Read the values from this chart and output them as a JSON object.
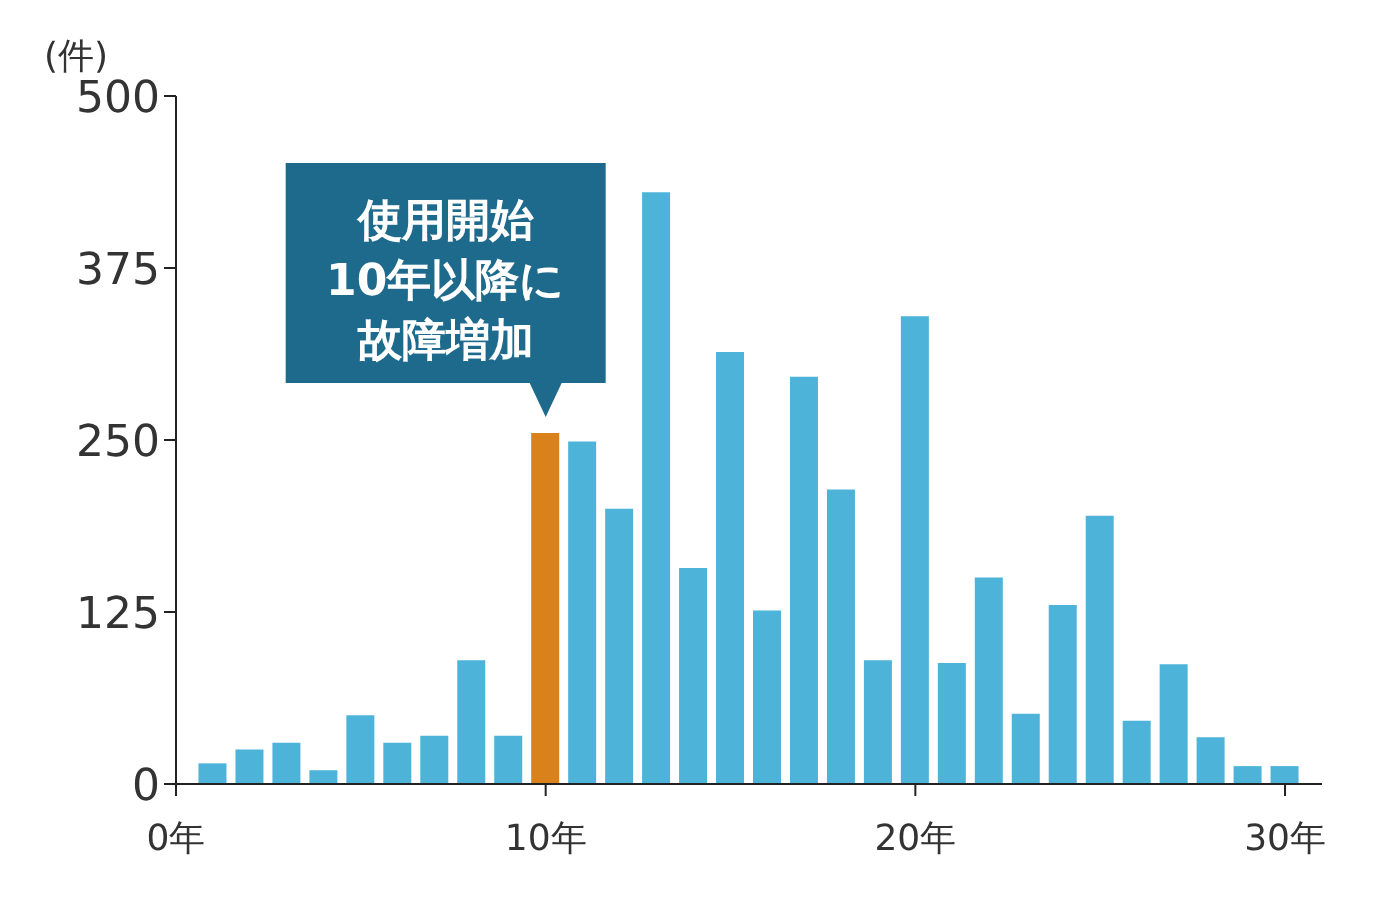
{
  "chart_data": {
    "type": "bar",
    "ylabel": "(件)",
    "x": [
      1,
      2,
      3,
      4,
      5,
      6,
      7,
      8,
      9,
      10,
      11,
      12,
      13,
      14,
      15,
      16,
      17,
      18,
      19,
      20,
      21,
      22,
      23,
      24,
      25,
      26,
      27,
      28,
      29,
      30
    ],
    "values": [
      15,
      25,
      30,
      10,
      50,
      30,
      35,
      90,
      35,
      255,
      249,
      200,
      430,
      157,
      314,
      126,
      296,
      214,
      90,
      340,
      88,
      150,
      51,
      130,
      195,
      46,
      87,
      34,
      13,
      13
    ],
    "colors": [
      "#4db3d9",
      "#4db3d9",
      "#4db3d9",
      "#4db3d9",
      "#4db3d9",
      "#4db3d9",
      "#4db3d9",
      "#4db3d9",
      "#4db3d9",
      "#d9821c",
      "#4db3d9",
      "#4db3d9",
      "#4db3d9",
      "#4db3d9",
      "#4db3d9",
      "#4db3d9",
      "#4db3d9",
      "#4db3d9",
      "#4db3d9",
      "#4db3d9",
      "#4db3d9",
      "#4db3d9",
      "#4db3d9",
      "#4db3d9",
      "#4db3d9",
      "#4db3d9",
      "#4db3d9",
      "#4db3d9",
      "#4db3d9",
      "#4db3d9"
    ],
    "xlim": [
      0,
      31
    ],
    "xticks": [
      {
        "value": 0,
        "label": "0年"
      },
      {
        "value": 10,
        "label": "10年"
      },
      {
        "value": 20,
        "label": "20年"
      },
      {
        "value": 30,
        "label": "30年"
      }
    ],
    "ylim": [
      0,
      500
    ],
    "yticks": [
      0,
      125,
      250,
      375,
      500
    ],
    "annotations": [
      "使用開始",
      "10年以降に",
      "故障増加"
    ],
    "grid": false,
    "legend": false
  }
}
